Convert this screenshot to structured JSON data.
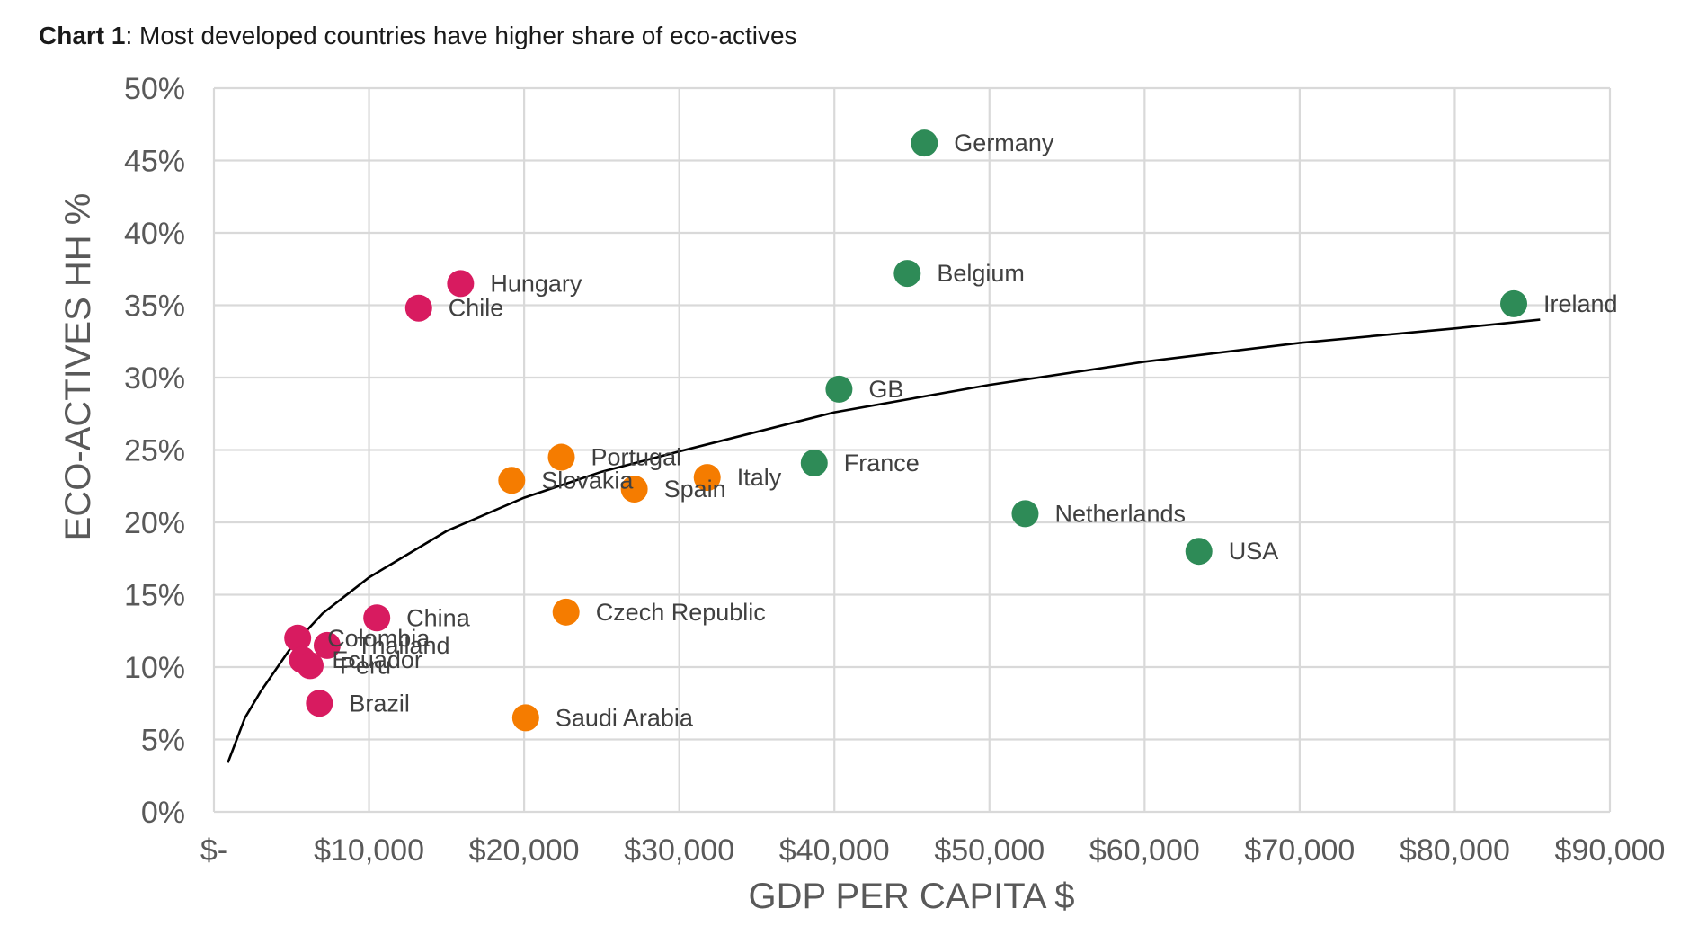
{
  "header": {
    "title_bold": "Chart 1",
    "title_rest": ": Most developed countries have higher share of eco-actives"
  },
  "chart_data": {
    "type": "scatter",
    "title": "Chart 1: Most developed countries have higher share of eco-actives",
    "xlabel": "GDP PER CAPITA $",
    "ylabel": "ECO-ACTIVES HH %",
    "xlim": [
      0,
      90000
    ],
    "ylim": [
      0,
      50
    ],
    "grid": true,
    "x_ticks": [
      0,
      10000,
      20000,
      30000,
      40000,
      50000,
      60000,
      70000,
      80000,
      90000
    ],
    "x_tick_labels": [
      "$-",
      "$10,000",
      "$20,000",
      "$30,000",
      "$40,000",
      "$50,000",
      "$60,000",
      "$70,000",
      "$80,000",
      "$90,000"
    ],
    "y_ticks": [
      0,
      5,
      10,
      15,
      20,
      25,
      30,
      35,
      40,
      45,
      50
    ],
    "y_tick_labels": [
      "0%",
      "5%",
      "10%",
      "15%",
      "20%",
      "25%",
      "30%",
      "35%",
      "40%",
      "45%",
      "50%"
    ],
    "colors": {
      "pink": "#d81b60",
      "orange": "#f57c00",
      "green": "#2e8b57",
      "trend": "#000000"
    },
    "points": [
      {
        "label": "Germany",
        "x": 45800,
        "y": 46.2,
        "group": "green"
      },
      {
        "label": "Belgium",
        "x": 44700,
        "y": 37.2,
        "group": "green"
      },
      {
        "label": "Ireland",
        "x": 83800,
        "y": 35.1,
        "group": "green"
      },
      {
        "label": "GB",
        "x": 40300,
        "y": 29.2,
        "group": "green"
      },
      {
        "label": "France",
        "x": 38700,
        "y": 24.1,
        "group": "green"
      },
      {
        "label": "Netherlands",
        "x": 52300,
        "y": 20.6,
        "group": "green"
      },
      {
        "label": "USA",
        "x": 63500,
        "y": 18.0,
        "group": "green"
      },
      {
        "label": "Portugal",
        "x": 22400,
        "y": 24.5,
        "group": "orange"
      },
      {
        "label": "Slovakia",
        "x": 19200,
        "y": 22.9,
        "group": "orange"
      },
      {
        "label": "Spain",
        "x": 27100,
        "y": 22.3,
        "group": "orange"
      },
      {
        "label": "Italy",
        "x": 31800,
        "y": 23.1,
        "group": "orange"
      },
      {
        "label": "Czech Republic",
        "x": 22700,
        "y": 13.8,
        "group": "orange"
      },
      {
        "label": "Saudi Arabia",
        "x": 20100,
        "y": 6.5,
        "group": "orange"
      },
      {
        "label": "Hungary",
        "x": 15900,
        "y": 36.5,
        "group": "pink"
      },
      {
        "label": "Chile",
        "x": 13200,
        "y": 34.8,
        "group": "pink"
      },
      {
        "label": "China",
        "x": 10500,
        "y": 13.4,
        "group": "pink"
      },
      {
        "label": "Colombia",
        "x": 5400,
        "y": 12.0,
        "group": "pink"
      },
      {
        "label": "Thailand",
        "x": 7300,
        "y": 11.5,
        "group": "pink"
      },
      {
        "label": "Ecuador",
        "x": 5700,
        "y": 10.5,
        "group": "pink"
      },
      {
        "label": "Peru",
        "x": 6200,
        "y": 10.1,
        "group": "pink"
      },
      {
        "label": "Brazil",
        "x": 6800,
        "y": 7.5,
        "group": "pink"
      }
    ],
    "trendline": {
      "type": "logarithmic",
      "x": [
        900,
        2000,
        3000,
        5000,
        7000,
        10000,
        15000,
        20000,
        25000,
        30000,
        40000,
        50000,
        60000,
        70000,
        80000,
        85500
      ],
      "y": [
        3.4,
        6.5,
        8.3,
        11.4,
        13.7,
        16.2,
        19.4,
        21.7,
        23.5,
        24.9,
        27.6,
        29.5,
        31.1,
        32.4,
        33.4,
        34.0
      ]
    }
  }
}
